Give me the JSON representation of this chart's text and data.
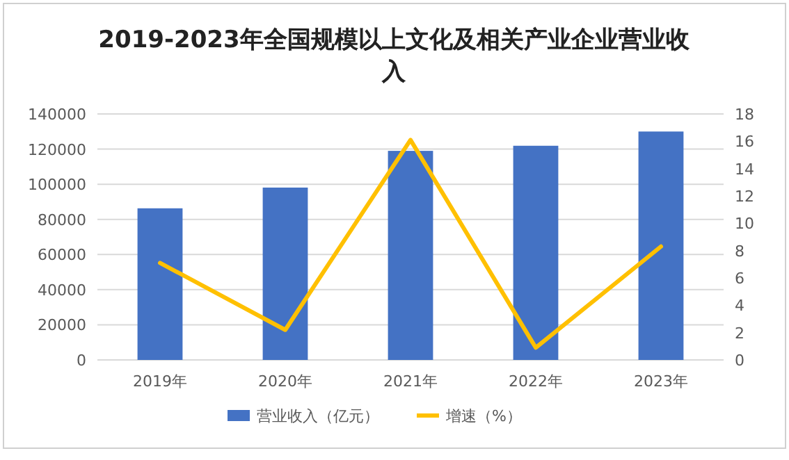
{
  "chart_data": {
    "type": "bar",
    "title": "2019-2023年全国规模以上文化及相关产业企业营业收入",
    "categories": [
      "2019年",
      "2020年",
      "2021年",
      "2022年",
      "2023年"
    ],
    "series": [
      {
        "name": "营业收入（亿元）",
        "color": "#4472c4",
        "values": [
          86300,
          98100,
          119000,
          121900,
          130000
        ]
      },
      {
        "name": "增速（%）",
        "type": "line",
        "axis": "y2",
        "color": "#ffc000",
        "values": [
          7.1,
          2.2,
          16.1,
          0.9,
          8.3
        ]
      }
    ],
    "ylim": [
      0,
      140000
    ],
    "yticks": [
      0,
      20000,
      40000,
      60000,
      80000,
      100000,
      120000,
      140000
    ],
    "y2lim": [
      0,
      18
    ],
    "y2ticks": [
      0,
      2,
      4,
      6,
      8,
      10,
      12,
      14,
      16,
      18
    ],
    "grid": "y",
    "legend": "bottom",
    "marker": "none"
  }
}
